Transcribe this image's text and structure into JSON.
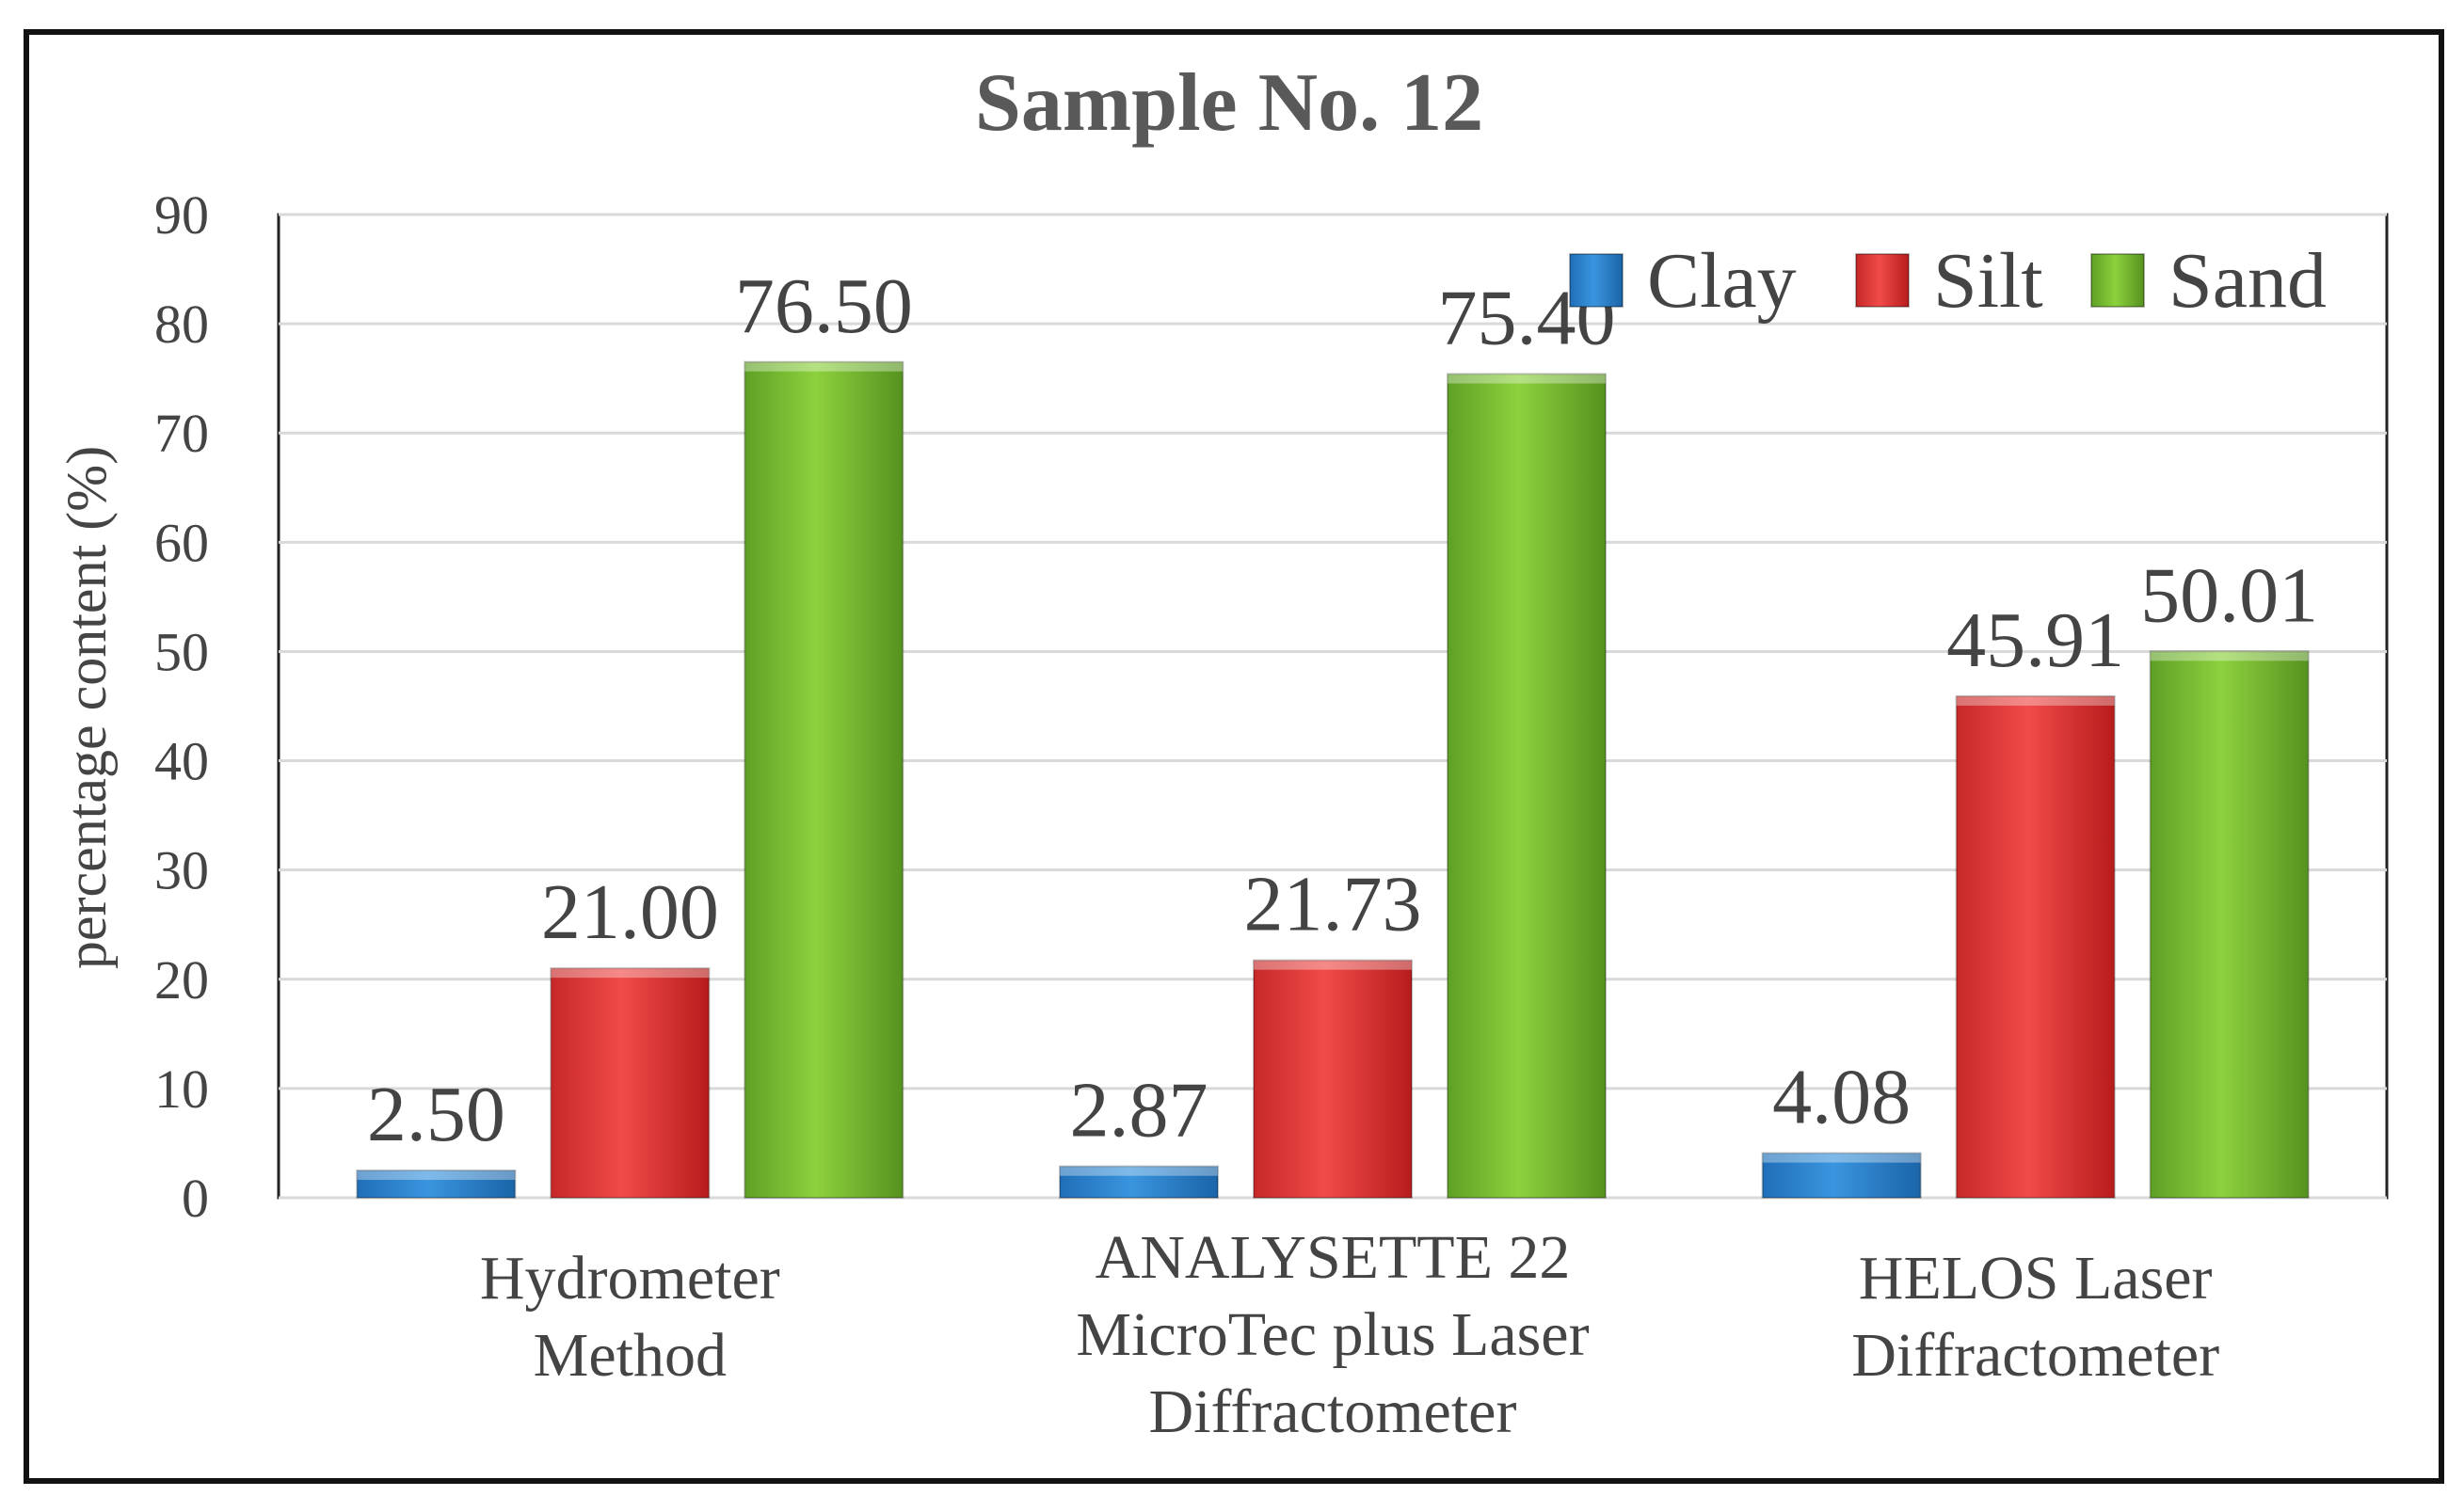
{
  "chart_data": {
    "type": "bar",
    "title": "Sample No. 12",
    "xlabel": "",
    "ylabel": "percentage content (%)",
    "ylim": [
      0,
      90
    ],
    "yticks": [
      0,
      10,
      20,
      30,
      40,
      50,
      60,
      70,
      80,
      90
    ],
    "grid": true,
    "legend_position": "top-right",
    "categories": [
      [
        "Hydrometer",
        "Method"
      ],
      [
        "ANALYSETTE 22",
        "MicroTec plus Laser",
        "Diffractometer"
      ],
      [
        "HELOS Laser",
        "Diffractometer"
      ]
    ],
    "series": [
      {
        "name": "Clay",
        "color": "#2E86D1",
        "values": [
          2.5,
          2.87,
          4.08
        ],
        "labels": [
          "2.50",
          "2.87",
          "4.08"
        ]
      },
      {
        "name": "Silt",
        "color": "#E53935",
        "values": [
          21.0,
          21.73,
          45.91
        ],
        "labels": [
          "21.00",
          "21.73",
          "45.91"
        ]
      },
      {
        "name": "Sand",
        "color": "#7CC234",
        "values": [
          76.5,
          75.4,
          50.01
        ],
        "labels": [
          "76.50",
          "75.40",
          "50.01"
        ]
      }
    ]
  }
}
